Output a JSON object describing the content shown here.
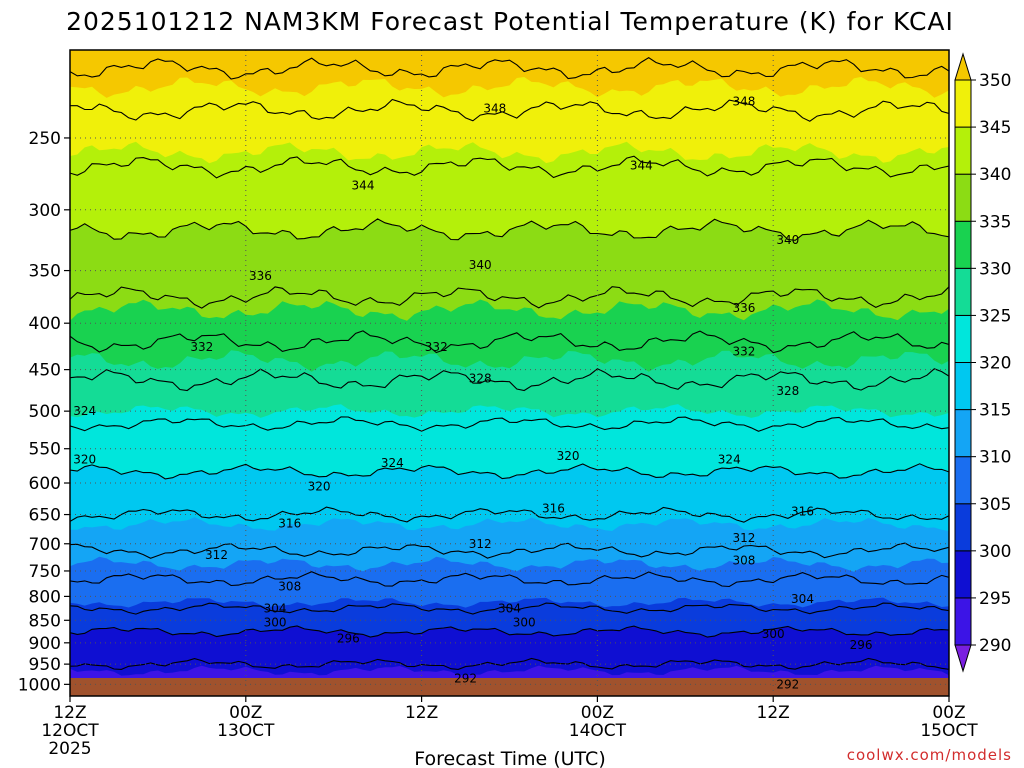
{
  "chart_data": {
    "type": "contour",
    "title": "2025101212 NAM3KM Forecast Potential Temperature (K) for KCAI",
    "xlabel": "Forecast Time (UTC)",
    "ylabel": "",
    "x_range_hours": [
      0,
      60
    ],
    "y_range_hPa": [
      200,
      1030
    ],
    "y_scale": "log-pressure (inverted)",
    "x_ticks": [
      {
        "hour": 0,
        "line1": "12Z",
        "line2": "12OCT",
        "line3": "2025"
      },
      {
        "hour": 12,
        "line1": "00Z",
        "line2": "13OCT",
        "line3": ""
      },
      {
        "hour": 24,
        "line1": "12Z",
        "line2": "",
        "line3": ""
      },
      {
        "hour": 36,
        "line1": "00Z",
        "line2": "14OCT",
        "line3": ""
      },
      {
        "hour": 48,
        "line1": "12Z",
        "line2": "",
        "line3": ""
      },
      {
        "hour": 60,
        "line1": "00Z",
        "line2": "15OCT",
        "line3": ""
      }
    ],
    "y_ticks": [
      250,
      300,
      350,
      400,
      450,
      500,
      550,
      600,
      650,
      700,
      750,
      800,
      850,
      900,
      950,
      1000
    ],
    "colorbar": {
      "levels": [
        290,
        295,
        300,
        305,
        310,
        315,
        320,
        325,
        330,
        335,
        340,
        345,
        350
      ],
      "colors": [
        "#7a1fe0",
        "#3c14e6",
        "#0f0fd2",
        "#0a3cdc",
        "#1a6ef0",
        "#14a5f5",
        "#00c8f0",
        "#00e6dc",
        "#14dc96",
        "#19d250",
        "#8cdc14",
        "#b4f00a",
        "#f0f00a",
        "#f5c800"
      ]
    },
    "contour_interval": 4,
    "theta_profile": [
      {
        "p": 200,
        "theta": 354
      },
      {
        "p": 225,
        "theta": 349
      },
      {
        "p": 250,
        "theta": 346
      },
      {
        "p": 300,
        "theta": 341
      },
      {
        "p": 350,
        "theta": 338
      },
      {
        "p": 400,
        "theta": 334
      },
      {
        "p": 450,
        "theta": 329
      },
      {
        "p": 500,
        "theta": 325
      },
      {
        "p": 550,
        "theta": 322
      },
      {
        "p": 600,
        "theta": 319
      },
      {
        "p": 650,
        "theta": 316
      },
      {
        "p": 700,
        "theta": 313
      },
      {
        "p": 750,
        "theta": 309
      },
      {
        "p": 800,
        "theta": 306
      },
      {
        "p": 850,
        "theta": 302
      },
      {
        "p": 900,
        "theta": 298
      },
      {
        "p": 950,
        "theta": 296
      },
      {
        "p": 1000,
        "theta": 293
      },
      {
        "p": 1030,
        "theta": 292
      }
    ],
    "contour_labels": [
      {
        "value": 348,
        "hour": 29,
        "p": 232
      },
      {
        "value": 348,
        "hour": 46,
        "p": 228
      },
      {
        "value": 344,
        "hour": 20,
        "p": 282
      },
      {
        "value": 344,
        "hour": 39,
        "p": 268
      },
      {
        "value": 340,
        "hour": 28,
        "p": 345
      },
      {
        "value": 340,
        "hour": 49,
        "p": 324
      },
      {
        "value": 336,
        "hour": 13,
        "p": 355
      },
      {
        "value": 336,
        "hour": 46,
        "p": 385
      },
      {
        "value": 332,
        "hour": 9,
        "p": 425
      },
      {
        "value": 332,
        "hour": 25,
        "p": 425
      },
      {
        "value": 332,
        "hour": 46,
        "p": 430
      },
      {
        "value": 328,
        "hour": 28,
        "p": 460
      },
      {
        "value": 328,
        "hour": 49,
        "p": 475
      },
      {
        "value": 324,
        "hour": 1,
        "p": 500
      },
      {
        "value": 324,
        "hour": 22,
        "p": 570
      },
      {
        "value": 324,
        "hour": 45,
        "p": 565
      },
      {
        "value": 320,
        "hour": 1,
        "p": 565
      },
      {
        "value": 320,
        "hour": 17,
        "p": 605
      },
      {
        "value": 320,
        "hour": 34,
        "p": 560
      },
      {
        "value": 316,
        "hour": 15,
        "p": 665
      },
      {
        "value": 316,
        "hour": 33,
        "p": 640
      },
      {
        "value": 316,
        "hour": 50,
        "p": 645
      },
      {
        "value": 312,
        "hour": 10,
        "p": 720
      },
      {
        "value": 312,
        "hour": 28,
        "p": 700
      },
      {
        "value": 312,
        "hour": 46,
        "p": 690
      },
      {
        "value": 308,
        "hour": 15,
        "p": 780
      },
      {
        "value": 308,
        "hour": 46,
        "p": 730
      },
      {
        "value": 304,
        "hour": 14,
        "p": 825
      },
      {
        "value": 304,
        "hour": 30,
        "p": 825
      },
      {
        "value": 304,
        "hour": 50,
        "p": 805
      },
      {
        "value": 300,
        "hour": 14,
        "p": 855
      },
      {
        "value": 300,
        "hour": 31,
        "p": 855
      },
      {
        "value": 300,
        "hour": 48,
        "p": 880
      },
      {
        "value": 296,
        "hour": 19,
        "p": 890
      },
      {
        "value": 296,
        "hour": 54,
        "p": 905
      },
      {
        "value": 292,
        "hour": 27,
        "p": 985
      },
      {
        "value": 292,
        "hour": 49,
        "p": 1000
      }
    ]
  },
  "credit": "coolwx.com/models",
  "colors": {
    "ground": "#a0522d",
    "credit": "#d22d2d"
  }
}
